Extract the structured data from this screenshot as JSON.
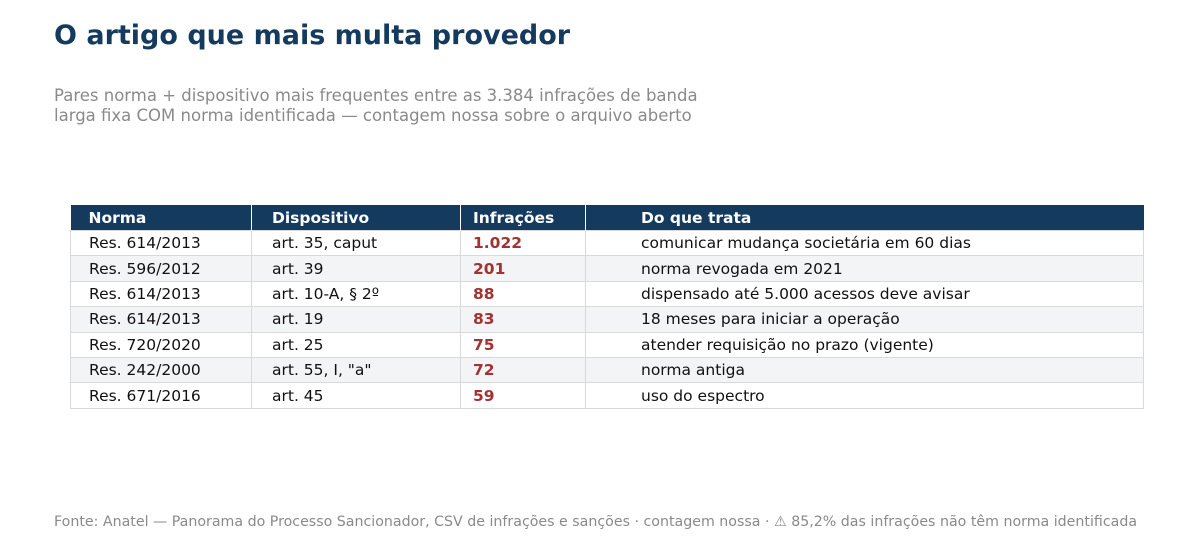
{
  "header": {
    "title": "O artigo que mais multa provedor",
    "subtitle_line1": "Pares norma + dispositivo mais frequentes entre as 3.384 infrações de banda",
    "subtitle_line2": "larga fixa COM norma identificada — contagem nossa sobre o arquivo aberto"
  },
  "chart_data": {
    "type": "table",
    "columns": [
      "Norma",
      "Dispositivo",
      "Infrações",
      "Do que trata"
    ],
    "rows": [
      {
        "norma": "Res. 614/2013",
        "dispositivo": "art. 35, caput",
        "infracoes": "1.022",
        "trata": "comunicar mudança societária em 60 dias"
      },
      {
        "norma": "Res. 596/2012",
        "dispositivo": "art. 39",
        "infracoes": "201",
        "trata": "norma revogada em 2021"
      },
      {
        "norma": "Res. 614/2013",
        "dispositivo": "art. 10-A, § 2º",
        "infracoes": "88",
        "trata": "dispensado até 5.000 acessos deve avisar"
      },
      {
        "norma": "Res. 614/2013",
        "dispositivo": "art. 19",
        "infracoes": "83",
        "trata": "18 meses para iniciar a operação"
      },
      {
        "norma": "Res. 720/2020",
        "dispositivo": "art. 25",
        "infracoes": "75",
        "trata": "atender requisição no prazo (vigente)"
      },
      {
        "norma": "Res. 242/2000",
        "dispositivo": "art. 55, I, \"a\"",
        "infracoes": "72",
        "trata": "norma antiga"
      },
      {
        "norma": "Res. 671/2016",
        "dispositivo": "art. 45",
        "infracoes": "59",
        "trata": "uso do espectro"
      }
    ]
  },
  "footer": {
    "source": "Fonte: Anatel — Panorama do Processo Sancionador, CSV de infrações e sanções · contagem nossa · ⚠ 85,2% das infrações não têm norma identificada"
  },
  "colors": {
    "header_bg": "#143a5e",
    "highlight_value": "#a33232",
    "stripe": "#f3f4f6"
  }
}
